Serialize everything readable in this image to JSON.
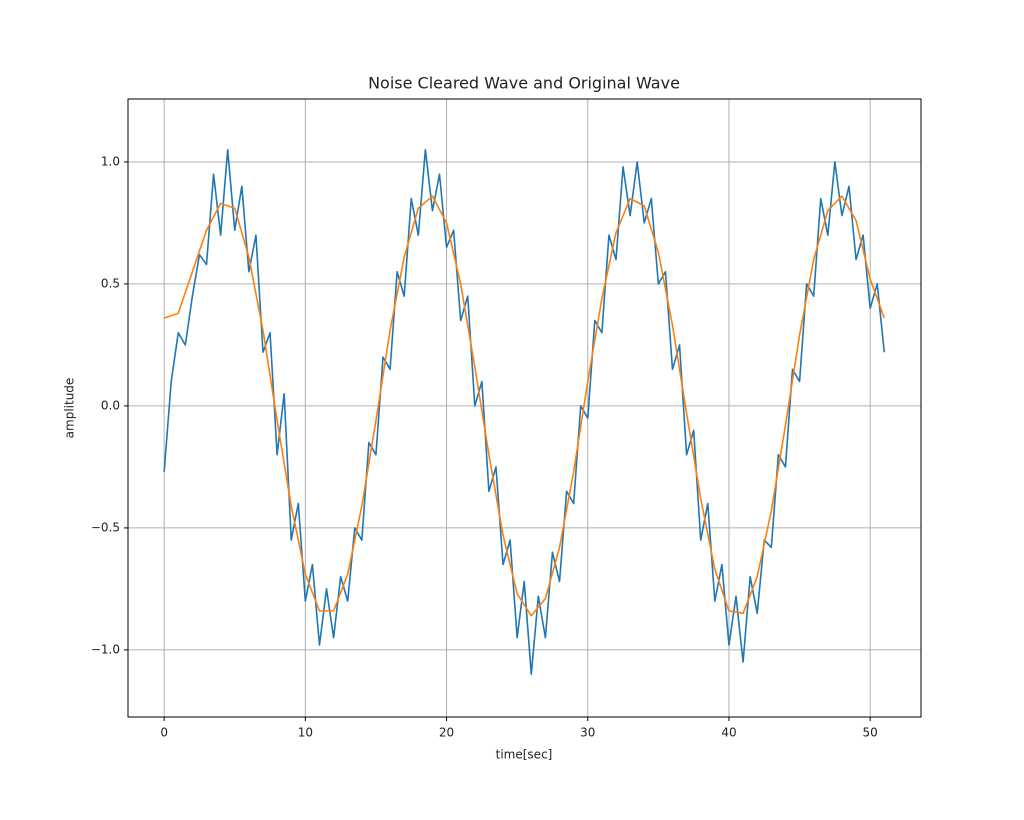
{
  "chart_data": {
    "type": "line",
    "title": "Noise Cleared Wave and Original Wave",
    "xlabel": "time[sec]",
    "ylabel": "amplitude",
    "xlim": [
      -2.56,
      53.6
    ],
    "ylim": [
      -1.275,
      1.258
    ],
    "xticks": [
      0,
      10,
      20,
      30,
      40,
      50
    ],
    "yticks": [
      {
        "value": -1.0,
        "label": "−1.0"
      },
      {
        "value": -0.5,
        "label": "−0.5"
      },
      {
        "value": 0.0,
        "label": "0.0"
      },
      {
        "value": 0.5,
        "label": "0.5"
      },
      {
        "value": 1.0,
        "label": "1.0"
      }
    ],
    "grid": true,
    "series": [
      {
        "color": "#1f77b4",
        "x": [
          0,
          0.5,
          1,
          1.5,
          2,
          2.5,
          3,
          3.5,
          4,
          4.5,
          5,
          5.5,
          6,
          6.5,
          7,
          7.5,
          8,
          8.5,
          9,
          9.5,
          10,
          10.5,
          11,
          11.5,
          12,
          12.5,
          13,
          13.5,
          14,
          14.5,
          15,
          15.5,
          16,
          16.5,
          17,
          17.5,
          18,
          18.5,
          19,
          19.5,
          20,
          20.5,
          21,
          21.5,
          22,
          22.5,
          23,
          23.5,
          24,
          24.5,
          25,
          25.5,
          26,
          26.5,
          27,
          27.5,
          28,
          28.5,
          29,
          29.5,
          30,
          30.5,
          31,
          31.5,
          32,
          32.5,
          33,
          33.5,
          34,
          34.5,
          35,
          35.5,
          36,
          36.5,
          37,
          37.5,
          38,
          38.5,
          39,
          39.5,
          40,
          40.5,
          41,
          41.5,
          42,
          42.5,
          43,
          43.5,
          44,
          44.5,
          45,
          45.5,
          46,
          46.5,
          47,
          47.5,
          48,
          48.5,
          49,
          49.5,
          50,
          50.5,
          51
        ],
        "values": [
          -0.27,
          0.1,
          0.3,
          0.25,
          0.45,
          0.62,
          0.58,
          0.95,
          0.7,
          1.05,
          0.72,
          0.9,
          0.55,
          0.7,
          0.22,
          0.3,
          -0.2,
          0.05,
          -0.55,
          -0.4,
          -0.8,
          -0.65,
          -0.98,
          -0.75,
          -0.95,
          -0.7,
          -0.8,
          -0.5,
          -0.55,
          -0.15,
          -0.2,
          0.2,
          0.15,
          0.55,
          0.45,
          0.85,
          0.7,
          1.05,
          0.8,
          0.95,
          0.65,
          0.72,
          0.35,
          0.45,
          0.0,
          0.1,
          -0.35,
          -0.25,
          -0.65,
          -0.55,
          -0.95,
          -0.72,
          -1.1,
          -0.78,
          -0.95,
          -0.6,
          -0.72,
          -0.35,
          -0.4,
          0.0,
          -0.05,
          0.35,
          0.3,
          0.7,
          0.6,
          0.98,
          0.78,
          1.0,
          0.75,
          0.85,
          0.5,
          0.55,
          0.15,
          0.25,
          -0.2,
          -0.1,
          -0.55,
          -0.4,
          -0.8,
          -0.65,
          -0.98,
          -0.78,
          -1.05,
          -0.7,
          -0.85,
          -0.55,
          -0.58,
          -0.2,
          -0.25,
          0.15,
          0.1,
          0.5,
          0.45,
          0.85,
          0.7,
          1.0,
          0.78,
          0.9,
          0.6,
          0.7,
          0.4,
          0.5,
          0.22
        ]
      },
      {
        "color": "#ff7f0e",
        "x": [
          0,
          1,
          2,
          3,
          4,
          5,
          6,
          7,
          8,
          9,
          10,
          11,
          12,
          13,
          14,
          15,
          16,
          17,
          18,
          19,
          20,
          21,
          22,
          23,
          24,
          25,
          26,
          27,
          28,
          29,
          30,
          31,
          32,
          33,
          34,
          35,
          36,
          37,
          38,
          39,
          40,
          41,
          42,
          43,
          44,
          45,
          46,
          47,
          48,
          49,
          50,
          51
        ],
        "values": [
          0.36,
          0.38,
          0.55,
          0.72,
          0.83,
          0.81,
          0.61,
          0.31,
          -0.06,
          -0.41,
          -0.69,
          -0.84,
          -0.84,
          -0.69,
          -0.41,
          -0.06,
          0.31,
          0.61,
          0.81,
          0.86,
          0.75,
          0.5,
          0.16,
          -0.2,
          -0.53,
          -0.77,
          -0.86,
          -0.79,
          -0.58,
          -0.27,
          0.1,
          0.44,
          0.71,
          0.85,
          0.82,
          0.63,
          0.33,
          -0.03,
          -0.38,
          -0.67,
          -0.84,
          -0.85,
          -0.7,
          -0.43,
          -0.08,
          0.29,
          0.6,
          0.8,
          0.86,
          0.76,
          0.52,
          0.36
        ]
      }
    ]
  }
}
